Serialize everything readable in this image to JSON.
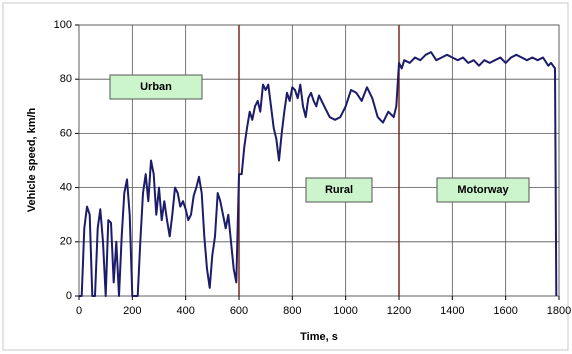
{
  "chart_data": {
    "type": "line",
    "xlabel": "Time, s",
    "ylabel": "Vehicle speed, km/h",
    "xlim": [
      0,
      1800
    ],
    "xticks": [
      0,
      200,
      400,
      600,
      800,
      1000,
      1200,
      1400,
      1600,
      1800
    ],
    "ylim": [
      0,
      100
    ],
    "yticks": [
      0,
      20,
      40,
      60,
      80,
      100
    ],
    "grid": true,
    "vlines": [
      600,
      1200
    ],
    "vline_color": "#7a2a1a",
    "annotations": [
      "Urban",
      "Rural",
      "Motorway"
    ],
    "series": [
      {
        "name": "Vehicle speed",
        "color": "#1c1c6b",
        "x": [
          0,
          10,
          20,
          30,
          40,
          50,
          60,
          70,
          80,
          90,
          100,
          110,
          120,
          130,
          140,
          150,
          160,
          170,
          180,
          190,
          200,
          210,
          220,
          230,
          240,
          250,
          260,
          270,
          280,
          290,
          300,
          310,
          320,
          330,
          340,
          350,
          360,
          370,
          380,
          390,
          400,
          410,
          420,
          430,
          440,
          450,
          460,
          470,
          480,
          490,
          500,
          510,
          520,
          530,
          540,
          550,
          560,
          570,
          580,
          590,
          600,
          610,
          620,
          630,
          640,
          650,
          660,
          670,
          680,
          690,
          700,
          710,
          720,
          730,
          740,
          750,
          760,
          770,
          780,
          790,
          800,
          810,
          820,
          830,
          840,
          850,
          860,
          870,
          880,
          890,
          900,
          920,
          940,
          960,
          980,
          1000,
          1020,
          1040,
          1060,
          1080,
          1100,
          1120,
          1140,
          1160,
          1180,
          1190,
          1200,
          1210,
          1220,
          1240,
          1260,
          1280,
          1300,
          1320,
          1340,
          1360,
          1380,
          1400,
          1420,
          1440,
          1460,
          1480,
          1500,
          1520,
          1540,
          1560,
          1580,
          1600,
          1620,
          1640,
          1660,
          1680,
          1700,
          1720,
          1740,
          1760,
          1770,
          1785,
          1790
        ],
        "values": [
          0,
          0,
          25,
          33,
          30,
          0,
          0,
          25,
          32,
          20,
          0,
          28,
          27,
          5,
          20,
          0,
          22,
          38,
          43,
          30,
          0,
          0,
          0,
          20,
          38,
          45,
          35,
          50,
          45,
          30,
          40,
          28,
          35,
          28,
          22,
          30,
          40,
          38,
          33,
          35,
          32,
          28,
          30,
          37,
          40,
          44,
          38,
          22,
          10,
          3,
          15,
          22,
          38,
          35,
          30,
          25,
          30,
          20,
          10,
          5,
          45,
          45,
          55,
          62,
          68,
          65,
          70,
          72,
          68,
          78,
          76,
          78,
          70,
          62,
          58,
          50,
          60,
          68,
          75,
          72,
          77,
          76,
          73,
          78,
          70,
          66,
          73,
          75,
          72,
          70,
          74,
          70,
          66,
          65,
          66,
          70,
          76,
          75,
          72,
          77,
          73,
          66,
          64,
          68,
          66,
          70,
          86,
          84,
          87,
          86,
          88,
          87,
          89,
          90,
          87,
          88,
          89,
          88,
          87,
          88,
          86,
          87,
          85,
          87,
          86,
          87,
          88,
          86,
          88,
          89,
          88,
          87,
          88,
          87,
          88,
          85,
          86,
          84,
          0
        ]
      }
    ]
  }
}
